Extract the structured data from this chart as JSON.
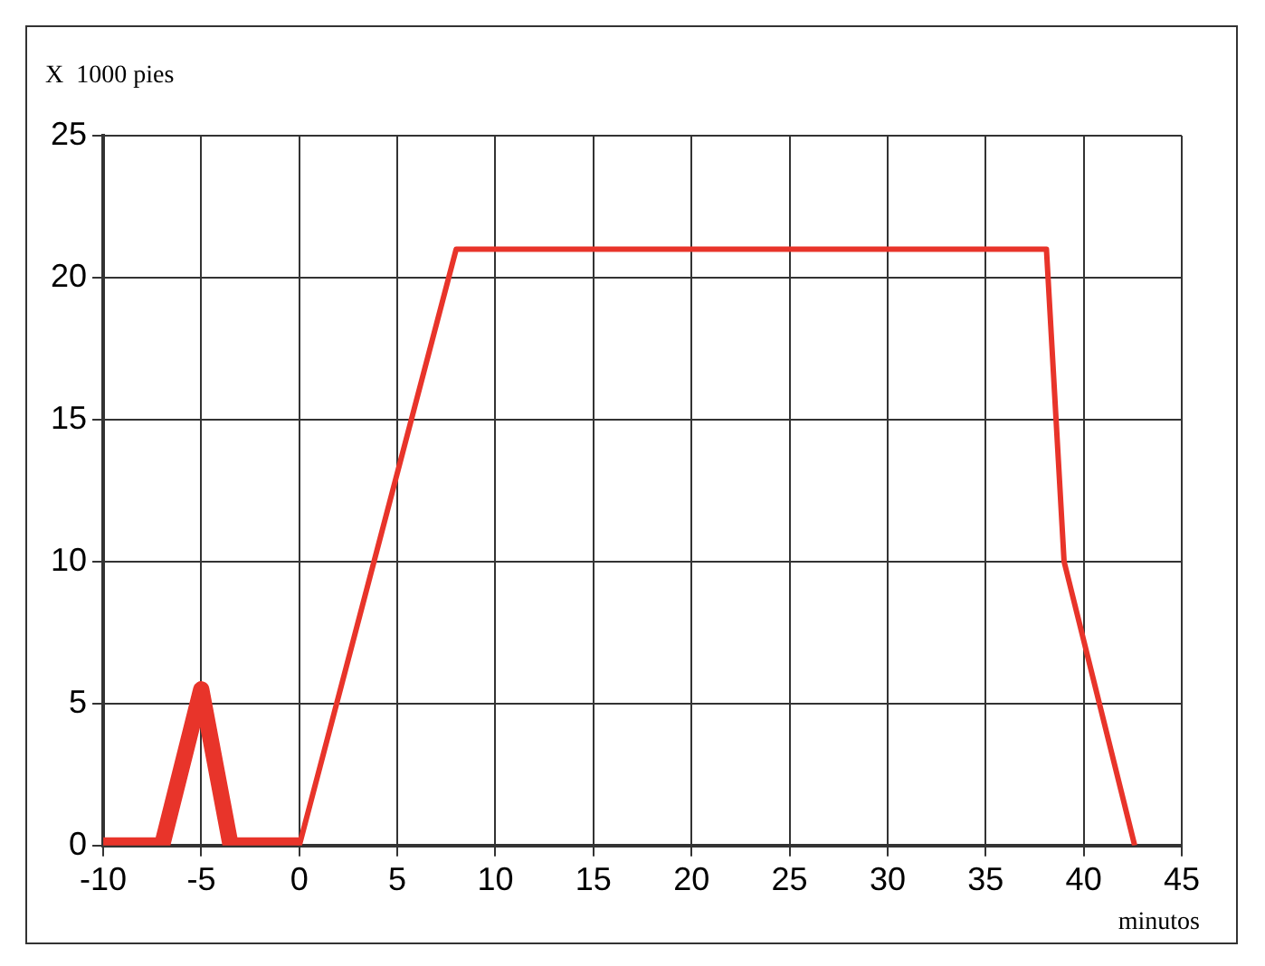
{
  "chart_data": {
    "type": "line",
    "xlabel": "minutos",
    "ylabel": "X  1000 pies",
    "xlim": [
      -10,
      45
    ],
    "xticks": [
      -10,
      -5,
      0,
      5,
      10,
      15,
      20,
      25,
      30,
      35,
      40,
      45
    ],
    "ylim": [
      0,
      25
    ],
    "yticks": [
      0,
      5,
      10,
      15,
      20,
      25
    ],
    "grid": true,
    "legend": false,
    "marker": "none",
    "line_style": "solid",
    "series": [
      {
        "color": "#e8342a",
        "x": [
          -10,
          -7,
          -5,
          -3.5,
          0
        ],
        "values": [
          0,
          0,
          5.5,
          0,
          0
        ]
      },
      {
        "color": "#e8342a",
        "x": [
          0,
          8,
          38.1,
          39,
          42.6
        ],
        "values": [
          0,
          21,
          21,
          10,
          0
        ]
      }
    ]
  }
}
